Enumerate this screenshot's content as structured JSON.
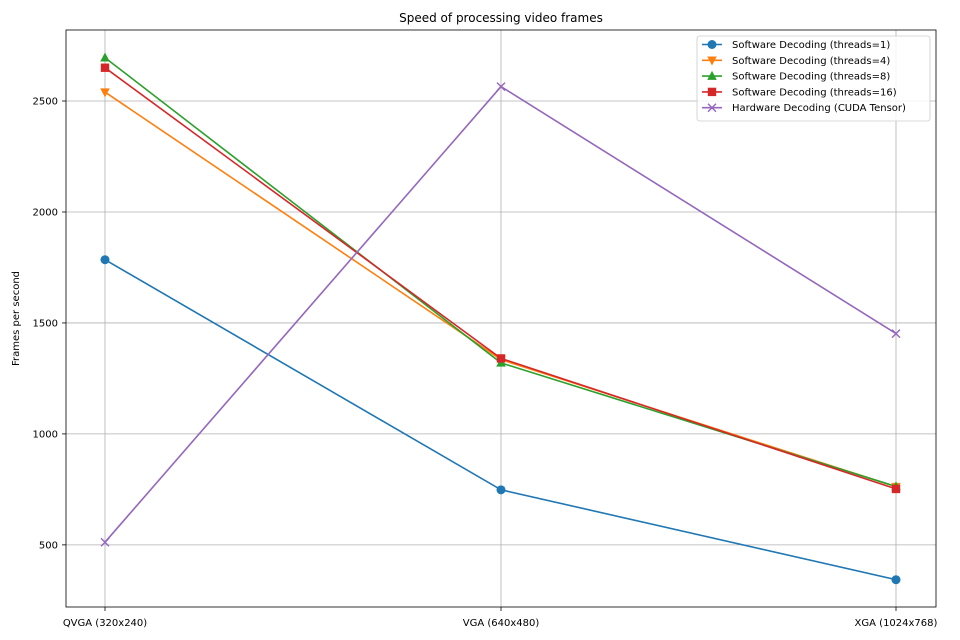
{
  "chart_data": {
    "type": "line",
    "title": "Speed of processing video frames",
    "xlabel": "",
    "ylabel": "Frames per second",
    "categories": [
      "QVGA (320x240)",
      "VGA (640x480)",
      "XGA (1024x768)"
    ],
    "ylim": [
      220,
      2820
    ],
    "yticks": [
      500,
      1000,
      1500,
      2000,
      2500
    ],
    "grid": true,
    "legend_position": "top-right",
    "series": [
      {
        "name": "Software Decoding (threads=1)",
        "values": [
          1785,
          748,
          343
        ],
        "color": "#1f77b4",
        "marker": "circle"
      },
      {
        "name": "Software Decoding (threads=4)",
        "values": [
          2540,
          1335,
          762
        ],
        "color": "#ff7f0e",
        "marker": "triangle-down"
      },
      {
        "name": "Software Decoding (threads=8)",
        "values": [
          2695,
          1320,
          763
        ],
        "color": "#2ca02c",
        "marker": "triangle-up"
      },
      {
        "name": "Software Decoding (threads=16)",
        "values": [
          2650,
          1340,
          752
        ],
        "color": "#d62728",
        "marker": "square"
      },
      {
        "name": "Hardware Decoding (CUDA Tensor)",
        "values": [
          512,
          2565,
          1452
        ],
        "color": "#9467bd",
        "marker": "x"
      }
    ]
  }
}
